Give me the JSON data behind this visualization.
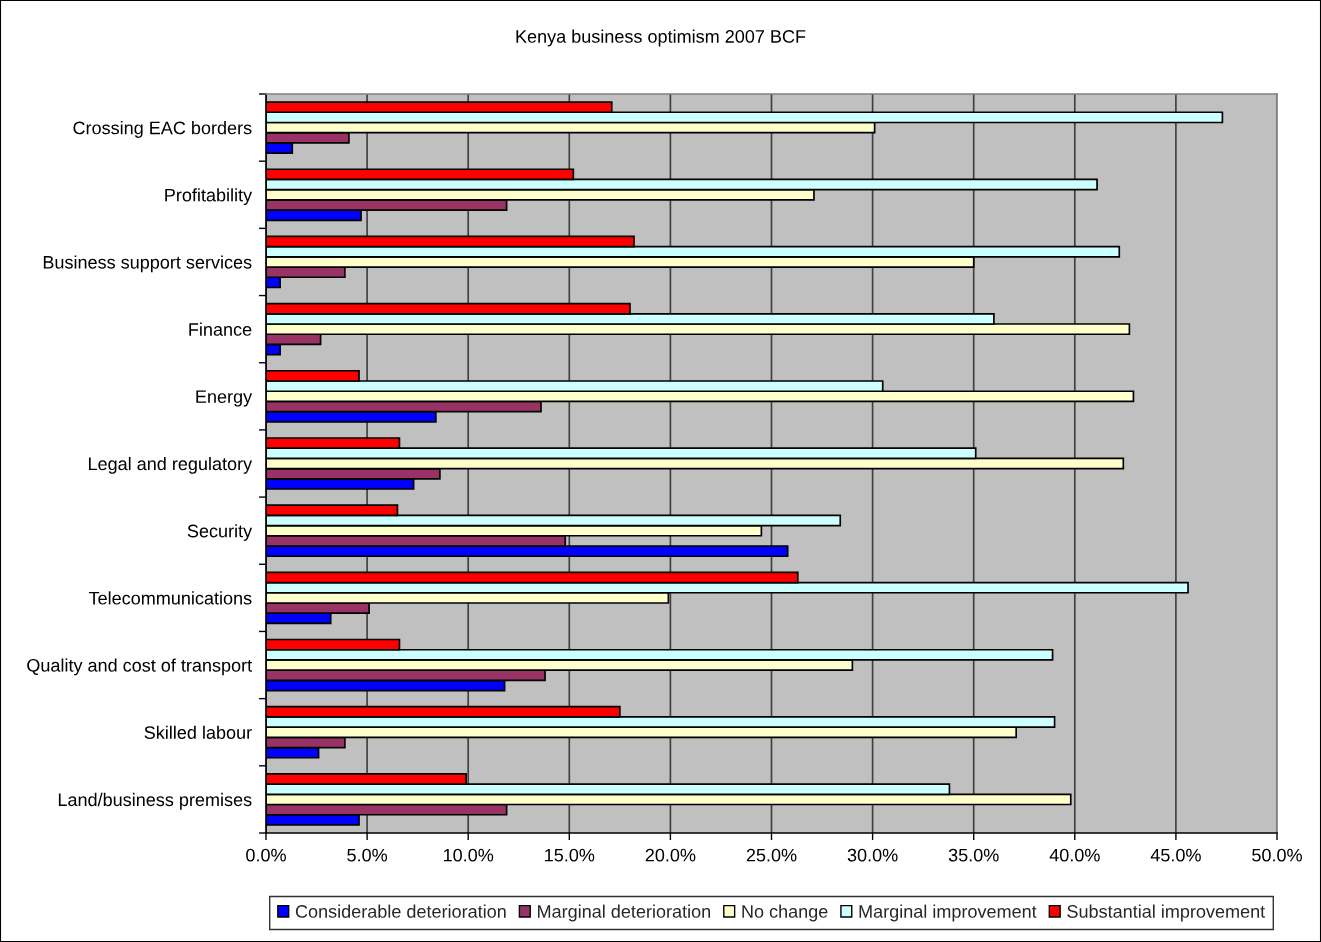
{
  "chart_data": {
    "type": "bar",
    "orientation": "horizontal",
    "title": "Kenya business optimism 2007 BCF",
    "categories": [
      "Crossing EAC borders",
      "Profitability",
      "Business support services",
      "Finance",
      "Energy",
      "Legal and regulatory",
      "Security",
      "Telecommunications",
      "Quality and cost of transport",
      "Skilled labour",
      "Land/business premises"
    ],
    "series": [
      {
        "name": "Considerable deterioration",
        "color": "#0000ff",
        "values": [
          1.3,
          4.7,
          0.7,
          0.7,
          8.4,
          7.3,
          25.8,
          3.2,
          11.8,
          2.6,
          4.6
        ]
      },
      {
        "name": "Marginal deterioration",
        "color": "#993366",
        "values": [
          4.1,
          11.9,
          3.9,
          2.7,
          13.6,
          8.6,
          14.8,
          5.1,
          13.8,
          3.9,
          11.9
        ]
      },
      {
        "name": "No change",
        "color": "#ffffcc",
        "values": [
          30.1,
          27.1,
          35.0,
          42.7,
          42.9,
          42.4,
          24.5,
          19.9,
          29.0,
          37.1,
          39.8
        ]
      },
      {
        "name": "Marginal improvement",
        "color": "#ccffff",
        "values": [
          47.3,
          41.1,
          42.2,
          36.0,
          30.5,
          35.1,
          28.4,
          45.6,
          38.9,
          39.0,
          33.8
        ]
      },
      {
        "name": "Substantial improvement",
        "color": "#ff0000",
        "values": [
          17.1,
          15.2,
          18.2,
          18.0,
          4.6,
          6.6,
          6.5,
          26.3,
          6.6,
          17.5,
          9.9
        ]
      }
    ],
    "xlim": [
      0,
      50
    ],
    "xticks": [
      {
        "value": 0,
        "label": "0.0%"
      },
      {
        "value": 5,
        "label": "5.0%"
      },
      {
        "value": 10,
        "label": "10.0%"
      },
      {
        "value": 15,
        "label": "15.0%"
      },
      {
        "value": 20,
        "label": "20.0%"
      },
      {
        "value": 25,
        "label": "25.0%"
      },
      {
        "value": 30,
        "label": "30.0%"
      },
      {
        "value": 35,
        "label": "35.0%"
      },
      {
        "value": 40,
        "label": "40.0%"
      },
      {
        "value": 45,
        "label": "45.0%"
      },
      {
        "value": 50,
        "label": "50.0%"
      }
    ],
    "grid": "x",
    "legend": "bottom"
  }
}
